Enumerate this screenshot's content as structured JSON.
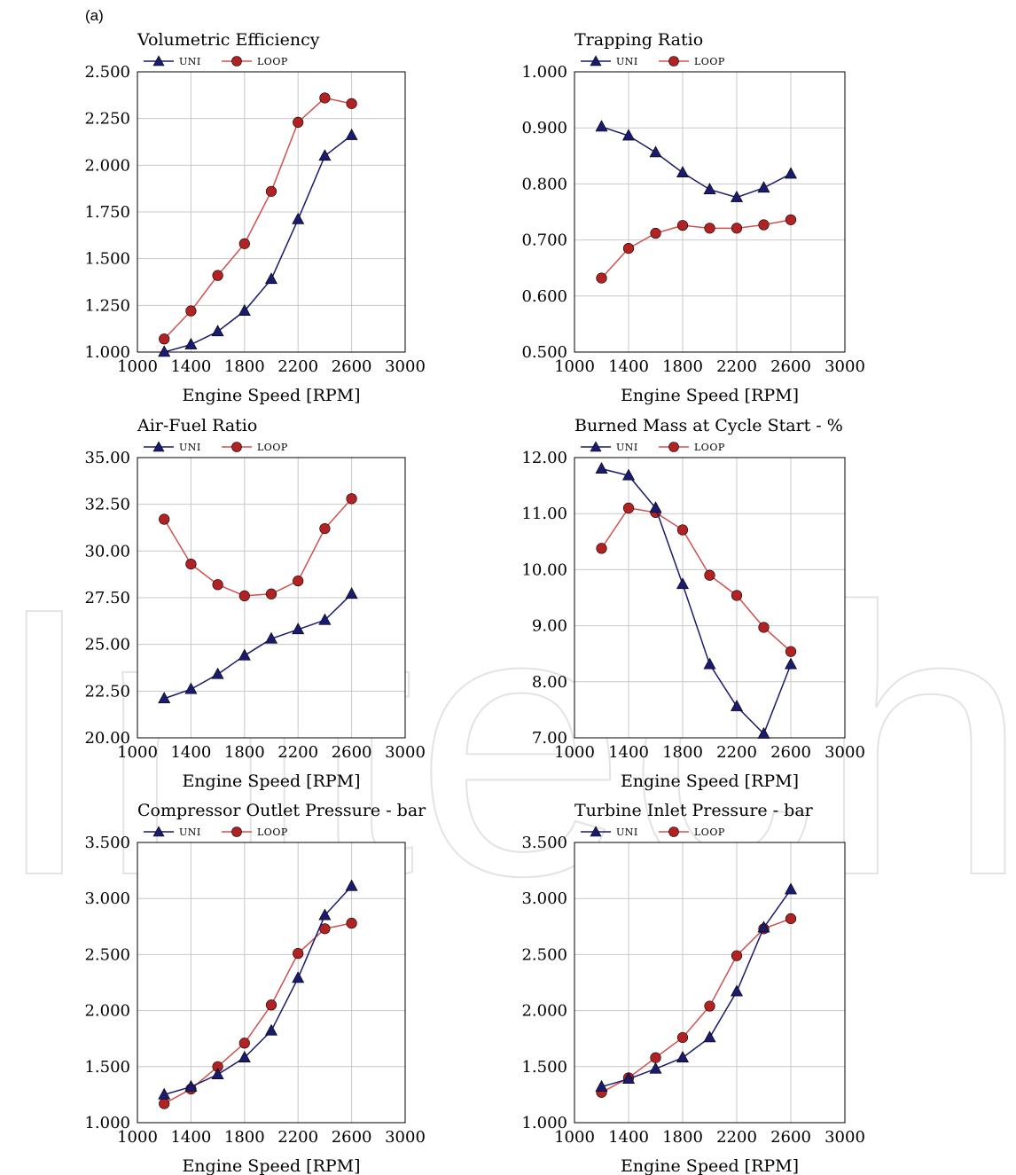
{
  "figure_label": "(a)",
  "watermark_text": "IntechOpen",
  "colors": {
    "uni": "#1a1a6e",
    "loop": "#b22222",
    "loop_line": "#d05050",
    "grid": "#c8c8c8",
    "watermark": "#e6e6e6"
  },
  "icons": {
    "uni_marker": "triangle-icon",
    "loop_marker": "circle-icon"
  },
  "chart_data": [
    {
      "type": "line",
      "title": "Volumetric Efficiency",
      "xlabel": "Engine Speed [RPM]",
      "ylabel": "",
      "xlim": [
        1000,
        3000
      ],
      "ylim": [
        1.0,
        2.5
      ],
      "xticks": [
        "1000",
        "1400",
        "1800",
        "2200",
        "2600",
        "3000"
      ],
      "yticks": [
        "1.000",
        "1.250",
        "1.500",
        "1.750",
        "2.000",
        "2.250",
        "2.500"
      ],
      "grid": true,
      "legend": "top-left",
      "x": [
        1200,
        1400,
        1600,
        1800,
        2000,
        2200,
        2400,
        2600
      ],
      "series": [
        {
          "name": "UNI",
          "marker": "triangle",
          "values": [
            1.0,
            1.04,
            1.11,
            1.22,
            1.39,
            1.71,
            2.05,
            2.16
          ]
        },
        {
          "name": "LOOP",
          "marker": "circle",
          "values": [
            1.07,
            1.22,
            1.41,
            1.58,
            1.86,
            2.23,
            2.36,
            2.33
          ]
        }
      ]
    },
    {
      "type": "line",
      "title": "Trapping Ratio",
      "xlabel": "Engine Speed [RPM]",
      "ylabel": "",
      "xlim": [
        1000,
        3000
      ],
      "ylim": [
        0.5,
        1.0
      ],
      "xticks": [
        "1000",
        "1400",
        "1800",
        "2200",
        "2600",
        "3000"
      ],
      "yticks": [
        "0.500",
        "0.600",
        "0.700",
        "0.800",
        "0.900",
        "1.000"
      ],
      "grid": true,
      "legend": "top-left",
      "x": [
        1200,
        1400,
        1600,
        1800,
        2000,
        2200,
        2400,
        2600
      ],
      "series": [
        {
          "name": "UNI",
          "marker": "triangle",
          "values": [
            0.902,
            0.886,
            0.856,
            0.82,
            0.79,
            0.776,
            0.793,
            0.818
          ]
        },
        {
          "name": "LOOP",
          "marker": "circle",
          "values": [
            0.632,
            0.685,
            0.712,
            0.726,
            0.721,
            0.721,
            0.727,
            0.736
          ]
        }
      ]
    },
    {
      "type": "line",
      "title": "Air-Fuel Ratio",
      "xlabel": "Engine Speed [RPM]",
      "ylabel": "",
      "xlim": [
        1000,
        3000
      ],
      "ylim": [
        20.0,
        35.0
      ],
      "xticks": [
        "1000",
        "1400",
        "1800",
        "2200",
        "2600",
        "3000"
      ],
      "yticks": [
        "20.00",
        "22.50",
        "25.00",
        "27.50",
        "30.00",
        "32.50",
        "35.00"
      ],
      "grid": true,
      "legend": "top-left",
      "x": [
        1200,
        1400,
        1600,
        1800,
        2000,
        2200,
        2400,
        2600
      ],
      "series": [
        {
          "name": "UNI",
          "marker": "triangle",
          "values": [
            22.1,
            22.6,
            23.4,
            24.4,
            25.3,
            25.8,
            26.3,
            27.7
          ]
        },
        {
          "name": "LOOP",
          "marker": "circle",
          "values": [
            31.7,
            29.3,
            28.2,
            27.6,
            27.7,
            28.4,
            31.2,
            32.8
          ]
        }
      ]
    },
    {
      "type": "line",
      "title": "Burned Mass at Cycle Start - %",
      "xlabel": "Engine Speed [RPM]",
      "ylabel": "",
      "xlim": [
        1000,
        3000
      ],
      "ylim": [
        7.0,
        12.0
      ],
      "xticks": [
        "1000",
        "1400",
        "1800",
        "2200",
        "2600",
        "3000"
      ],
      "yticks": [
        "7.00",
        "8.00",
        "9.00",
        "10.00",
        "11.00",
        "12.00"
      ],
      "grid": true,
      "legend": "top-left",
      "x": [
        1200,
        1400,
        1600,
        1800,
        2000,
        2200,
        2400,
        2600
      ],
      "series": [
        {
          "name": "UNI",
          "marker": "triangle",
          "values": [
            11.8,
            11.68,
            11.1,
            9.74,
            8.31,
            7.56,
            7.07,
            8.31
          ]
        },
        {
          "name": "LOOP",
          "marker": "circle",
          "values": [
            10.38,
            11.1,
            11.02,
            10.71,
            9.9,
            9.54,
            8.97,
            8.54
          ]
        }
      ]
    },
    {
      "type": "line",
      "title": "Compressor Outlet Pressure - bar",
      "xlabel": "Engine Speed [RPM]",
      "ylabel": "",
      "xlim": [
        1000,
        3000
      ],
      "ylim": [
        1.0,
        3.5
      ],
      "xticks": [
        "1000",
        "1400",
        "1800",
        "2200",
        "2600",
        "3000"
      ],
      "yticks": [
        "1.000",
        "1.500",
        "2.000",
        "2.500",
        "3.000",
        "3.500"
      ],
      "grid": true,
      "legend": "top-left",
      "x": [
        1200,
        1400,
        1600,
        1800,
        2000,
        2200,
        2400,
        2600
      ],
      "series": [
        {
          "name": "UNI",
          "marker": "triangle",
          "values": [
            1.25,
            1.32,
            1.43,
            1.58,
            1.82,
            2.29,
            2.85,
            3.11
          ]
        },
        {
          "name": "LOOP",
          "marker": "circle",
          "values": [
            1.17,
            1.3,
            1.5,
            1.71,
            2.05,
            2.51,
            2.73,
            2.78
          ]
        }
      ]
    },
    {
      "type": "line",
      "title": "Turbine Inlet Pressure - bar",
      "xlabel": "Engine Speed [RPM]",
      "ylabel": "",
      "xlim": [
        1000,
        3000
      ],
      "ylim": [
        1.0,
        3.5
      ],
      "xticks": [
        "1000",
        "1400",
        "1800",
        "2200",
        "2600",
        "3000"
      ],
      "yticks": [
        "1.000",
        "1.500",
        "2.000",
        "2.500",
        "3.000",
        "3.500"
      ],
      "grid": true,
      "legend": "top-left",
      "x": [
        1200,
        1400,
        1600,
        1800,
        2000,
        2200,
        2400,
        2600
      ],
      "series": [
        {
          "name": "UNI",
          "marker": "triangle",
          "values": [
            1.32,
            1.39,
            1.48,
            1.58,
            1.76,
            2.17,
            2.74,
            3.08
          ]
        },
        {
          "name": "LOOP",
          "marker": "circle",
          "values": [
            1.27,
            1.4,
            1.58,
            1.76,
            2.04,
            2.49,
            2.73,
            2.82
          ]
        }
      ]
    }
  ]
}
